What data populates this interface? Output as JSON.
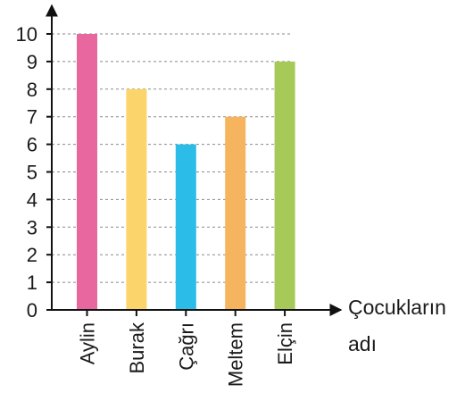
{
  "chart_data": {
    "type": "bar",
    "categories": [
      "Aylin",
      "Burak",
      "Çağrı",
      "Meltem",
      "Elçin"
    ],
    "values": [
      10,
      8,
      6,
      7,
      9
    ],
    "colors": [
      "#e8679f",
      "#fbd56b",
      "#2bbde8",
      "#f6b45e",
      "#a7c957"
    ],
    "ylim": [
      0,
      10
    ],
    "yticks": [
      0,
      1,
      2,
      3,
      4,
      5,
      6,
      7,
      8,
      9,
      10
    ],
    "xlabel_lines": [
      "Çocukların",
      "adı"
    ],
    "ylabel": "",
    "grid": true,
    "grid_style": "dashed"
  }
}
